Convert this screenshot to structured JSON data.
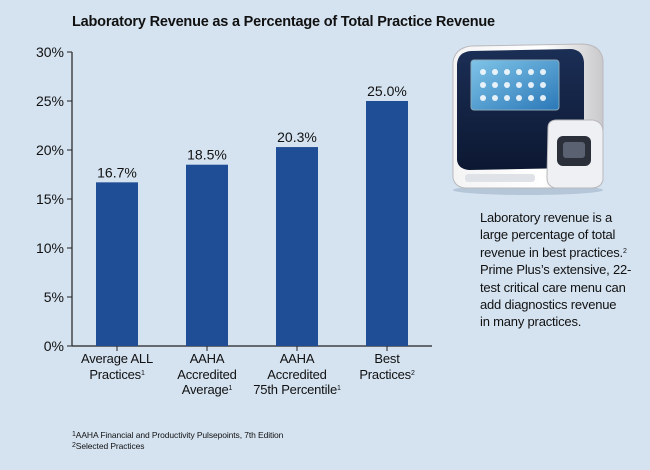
{
  "title": "Laboratory Revenue as a Percentage of Total Practice Revenue",
  "chart_data": {
    "type": "bar",
    "title": "Laboratory Revenue as a Percentage of Total Practice Revenue",
    "categories": [
      {
        "lines": [
          "Average ALL",
          "Practices"
        ],
        "sup": "1"
      },
      {
        "lines": [
          "AAHA",
          "Accredited",
          "Average"
        ],
        "sup": "1"
      },
      {
        "lines": [
          "AAHA",
          "Accredited",
          "75th Percentile"
        ],
        "sup": "1"
      },
      {
        "lines": [
          "Best",
          "Practices"
        ],
        "sup": "2"
      }
    ],
    "values": [
      16.7,
      18.5,
      20.3,
      25.0
    ],
    "value_labels": [
      "16.7%",
      "18.5%",
      "20.3%",
      "25.0%"
    ],
    "yticks": [
      0,
      5,
      10,
      15,
      20,
      25,
      30
    ],
    "ytick_labels": [
      "0%",
      "5%",
      "10%",
      "15%",
      "20%",
      "25%",
      "30%"
    ],
    "ylim": [
      0,
      30
    ],
    "grid": false,
    "bar_color": "#1f4e96",
    "xlabel": "",
    "ylabel": ""
  },
  "caption": {
    "lines": [
      {
        "text": "Laboratory revenue is a"
      },
      {
        "text": "large percentage of total"
      },
      {
        "text": "revenue in best practices.",
        "sup": "2"
      },
      {
        "text": "Prime Plus’s extensive, 22-"
      },
      {
        "text": "test critical care menu can"
      },
      {
        "text": "add diagnostics revenue"
      },
      {
        "text": "in many practices."
      }
    ]
  },
  "footnotes": [
    {
      "sup": "1",
      "text": "AAHA Financial and Productivity Pulsepoints, 7th Edition"
    },
    {
      "sup": "2",
      "text": "Selected Practices"
    }
  ],
  "colors": {
    "background": "#d5e3f1",
    "bar": "#1f4e96",
    "axis": "#222222"
  },
  "image": {
    "icon": "blood-analyzer-device"
  }
}
